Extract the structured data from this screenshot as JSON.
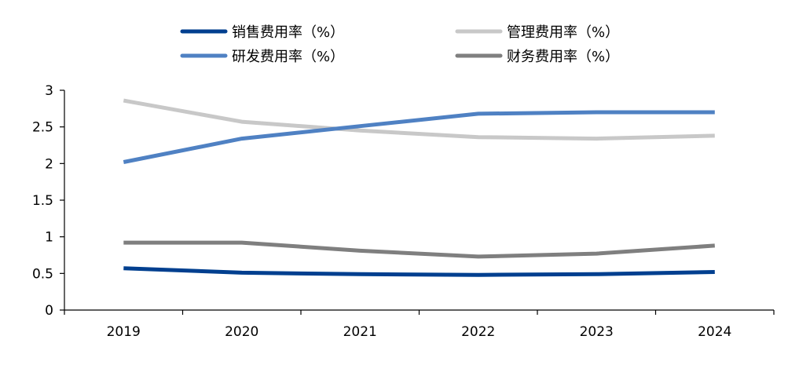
{
  "chart_data": {
    "type": "line",
    "title": "",
    "xlabel": "",
    "ylabel": "",
    "categories": [
      "2019",
      "2020",
      "2021",
      "2022",
      "2023",
      "2024"
    ],
    "ylim": [
      0,
      3
    ],
    "yticks": [
      "0",
      "0.5",
      "1",
      "1.5",
      "2",
      "2.5",
      "3"
    ],
    "grid": false,
    "legend_position": "top",
    "series": [
      {
        "name": "销售费用率（%）",
        "color": "#003f8f",
        "values": [
          0.57,
          0.51,
          0.49,
          0.48,
          0.49,
          0.52
        ]
      },
      {
        "name": "管理费用率（%）",
        "color": "#c8c8c8",
        "values": [
          2.86,
          2.57,
          2.45,
          2.36,
          2.34,
          2.38
        ]
      },
      {
        "name": "研发费用率（%）",
        "color": "#4f81c3",
        "values": [
          2.02,
          2.34,
          2.51,
          2.68,
          2.7,
          2.7
        ]
      },
      {
        "name": "财务费用率（%）",
        "color": "#7f7f7f",
        "values": [
          0.92,
          0.92,
          0.81,
          0.73,
          0.77,
          0.88
        ]
      }
    ]
  }
}
